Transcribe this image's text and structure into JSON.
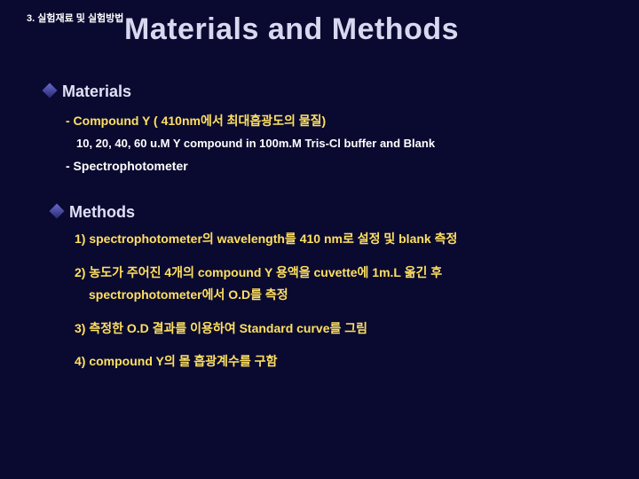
{
  "colors": {
    "background": "#0a0a30",
    "title": "#d8d8f0",
    "heading": "#e0e0f8",
    "body": "#ffffff",
    "accent": "#ffe060"
  },
  "fonts": {
    "title_size_pt": 34,
    "heading_size_pt": 18,
    "body_size_pt": 14,
    "small_size_pt": 13
  },
  "topLabel": "3. 실험재료 및 실험방법",
  "title": "Materials and Methods",
  "materials": {
    "heading": "Materials",
    "compound_line": "- Compound  Y  ( 410nm에서 최대흡광도의 물질)",
    "compound_sub": "10, 20, 40, 60 u.M  Y compound in 100m.M Tris-Cl buffer and Blank",
    "spectro_line": "-  Spectrophotometer"
  },
  "methods": {
    "heading": "Methods",
    "step1": "1) spectrophotometer의 wavelength를 410 nm로 설정 및 blank 측정",
    "step2a": "2) 농도가 주어진 4개의 compound Y 용액을 cuvette에 1m.L 옮긴 후",
    "step2b": "spectrophotometer에서 O.D를 측정",
    "step3": "3) 측정한 O.D 결과를 이용하여 Standard curve를 그림",
    "step4": "4) compound Y의 몰 흡광계수를 구함"
  }
}
